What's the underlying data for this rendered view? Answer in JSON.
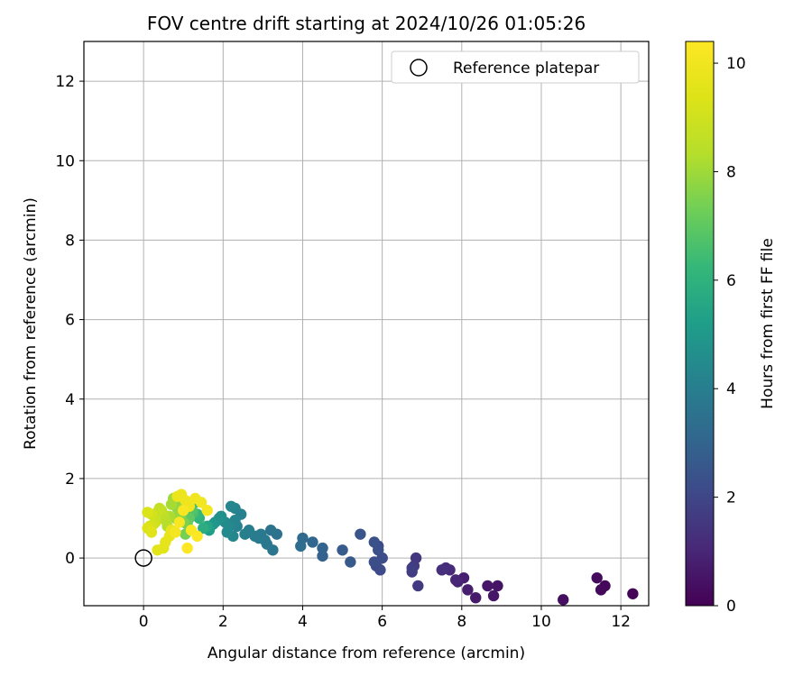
{
  "chart_data": {
    "type": "scatter",
    "title": "FOV centre drift starting at 2024/10/26 01:05:26",
    "xlabel": "Angular distance from reference (arcmin)",
    "ylabel": "Rotation from reference (arcmin)",
    "xlim": [
      -1.5,
      12.7
    ],
    "ylim": [
      -1.2,
      13.0
    ],
    "xticks": [
      0,
      2,
      4,
      6,
      8,
      10,
      12
    ],
    "yticks": [
      0,
      2,
      4,
      6,
      8,
      10,
      12
    ],
    "grid": true,
    "legend": {
      "placement": "top-right",
      "entries": [
        "Reference platepar"
      ]
    },
    "colorbar": {
      "label": "Hours from first FF file",
      "colormap": "viridis",
      "range": [
        0,
        10.4
      ],
      "ticks": [
        0,
        2,
        4,
        6,
        8,
        10
      ]
    },
    "reference_point": {
      "x": 0,
      "y": 0
    },
    "series": [
      {
        "x": [
          12.3,
          11.6,
          11.5,
          11.4,
          10.55,
          8.9,
          8.8,
          8.65,
          8.35,
          8.15,
          8.05,
          7.9,
          7.85,
          7.7,
          7.6,
          7.5,
          6.85,
          6.8,
          6.9,
          6.75,
          6.75,
          6.0,
          5.9,
          5.95,
          5.85,
          6.0,
          5.8,
          5.9,
          5.8,
          5.45,
          5.2,
          5.0,
          4.5,
          4.5,
          4.25,
          4.0,
          3.95,
          3.35,
          3.2,
          3.25,
          3.1,
          3.05,
          2.95,
          2.9,
          2.8,
          2.65,
          2.55,
          2.45,
          2.35,
          2.3,
          2.3,
          2.25,
          2.2,
          2.15,
          2.1,
          2.05,
          1.95,
          1.9,
          1.8,
          1.75,
          1.65,
          1.6,
          1.5,
          1.4,
          1.35,
          1.3,
          1.25,
          1.2,
          1.15,
          1.1,
          1.05,
          1.0,
          0.95,
          0.9,
          0.85,
          0.8,
          0.75,
          0.7,
          0.65,
          0.6,
          0.55,
          0.5,
          0.45,
          0.4,
          0.35,
          0.3,
          0.25,
          0.2,
          0.15,
          0.1,
          0.1,
          0.2,
          0.35,
          0.5,
          0.55,
          0.65,
          0.7,
          0.85,
          0.95,
          1.05,
          1.15,
          1.3,
          1.45,
          1.6,
          0.8,
          0.9,
          1.0,
          1.2,
          1.35,
          1.1
        ],
        "y": [
          -0.9,
          -0.7,
          -0.8,
          -0.5,
          -1.05,
          -0.7,
          -0.95,
          -0.7,
          -1.0,
          -0.8,
          -0.5,
          -0.6,
          -0.55,
          -0.3,
          -0.25,
          -0.3,
          0.0,
          -0.2,
          -0.7,
          -0.35,
          -0.25,
          0.0,
          0.3,
          -0.3,
          -0.2,
          0.0,
          -0.1,
          0.2,
          0.4,
          0.6,
          -0.1,
          0.2,
          0.05,
          0.25,
          0.4,
          0.5,
          0.3,
          0.6,
          0.7,
          0.2,
          0.35,
          0.45,
          0.6,
          0.5,
          0.55,
          0.7,
          0.6,
          1.1,
          0.8,
          1.25,
          0.95,
          0.55,
          1.3,
          0.8,
          0.65,
          0.9,
          1.05,
          1.0,
          0.9,
          0.85,
          0.7,
          0.8,
          0.75,
          1.0,
          1.1,
          1.4,
          1.15,
          1.2,
          1.0,
          0.85,
          0.6,
          0.9,
          1.1,
          1.35,
          1.25,
          1.0,
          1.5,
          1.35,
          1.05,
          0.8,
          0.95,
          1.1,
          1.2,
          1.25,
          1.15,
          0.9,
          0.85,
          1.1,
          0.8,
          1.15,
          0.75,
          0.65,
          0.2,
          0.25,
          0.4,
          0.55,
          0.7,
          1.55,
          1.6,
          1.45,
          1.3,
          1.5,
          1.4,
          1.2,
          0.65,
          0.9,
          1.2,
          0.7,
          0.55,
          0.25
        ],
        "hours": [
          0.1,
          0.15,
          0.2,
          0.3,
          0.35,
          0.5,
          0.55,
          0.6,
          0.7,
          0.75,
          0.8,
          0.9,
          1.0,
          1.1,
          1.2,
          1.3,
          1.5,
          1.6,
          1.65,
          1.7,
          1.75,
          2.0,
          2.05,
          2.1,
          2.15,
          2.2,
          2.25,
          2.3,
          2.35,
          2.5,
          2.6,
          2.7,
          2.9,
          3.0,
          3.1,
          3.2,
          3.3,
          3.5,
          3.6,
          3.65,
          3.7,
          3.75,
          3.8,
          3.85,
          3.9,
          4.0,
          4.05,
          4.1,
          4.15,
          4.2,
          4.25,
          4.3,
          4.35,
          4.4,
          4.45,
          4.5,
          4.6,
          4.7,
          4.8,
          4.9,
          5.2,
          5.5,
          5.8,
          6.0,
          6.2,
          6.4,
          6.6,
          6.8,
          7.0,
          7.2,
          7.4,
          7.5,
          7.6,
          7.7,
          7.8,
          7.9,
          8.0,
          8.1,
          8.2,
          8.3,
          8.4,
          8.5,
          8.6,
          8.7,
          8.8,
          8.9,
          9.0,
          9.1,
          9.2,
          9.3,
          9.4,
          9.5,
          9.55,
          9.6,
          9.65,
          9.7,
          9.75,
          9.8,
          9.85,
          9.9,
          9.95,
          10.0,
          10.05,
          10.1,
          10.15,
          10.2,
          10.25,
          10.3,
          10.35,
          10.4
        ]
      }
    ]
  }
}
